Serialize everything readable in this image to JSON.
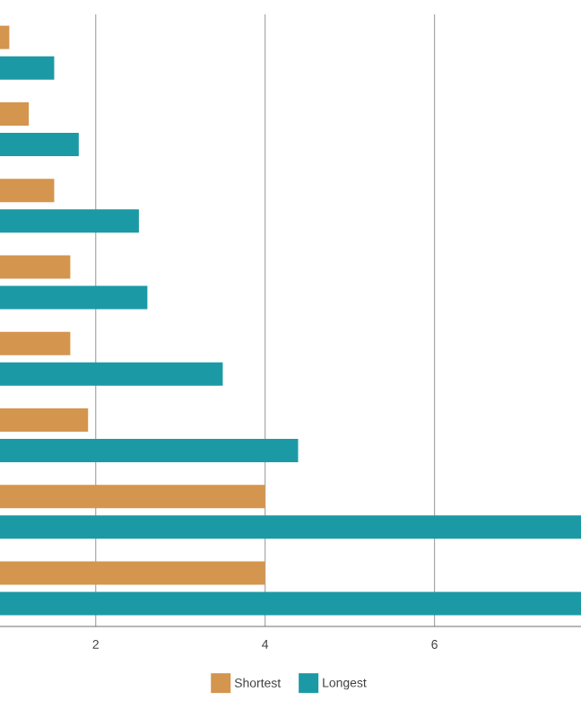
{
  "chart_data": {
    "type": "bar",
    "orientation": "horizontal",
    "categories": [
      null,
      null,
      null,
      null,
      null,
      null,
      null,
      null
    ],
    "series": [
      {
        "name": "Shortest",
        "color": "#d4954e",
        "values": [
          0.98,
          1.21,
          1.51,
          1.7,
          1.7,
          1.91,
          4.0,
          4.0
        ]
      },
      {
        "name": "Longest",
        "color": "#1b9aa6",
        "values": [
          1.51,
          1.8,
          2.51,
          2.61,
          3.5,
          4.39,
          7.73,
          7.73
        ]
      }
    ],
    "xlim": [
      0.87,
      7.73
    ],
    "xticks": [
      2,
      4,
      6
    ],
    "grid": "x",
    "legend": "bottom"
  }
}
